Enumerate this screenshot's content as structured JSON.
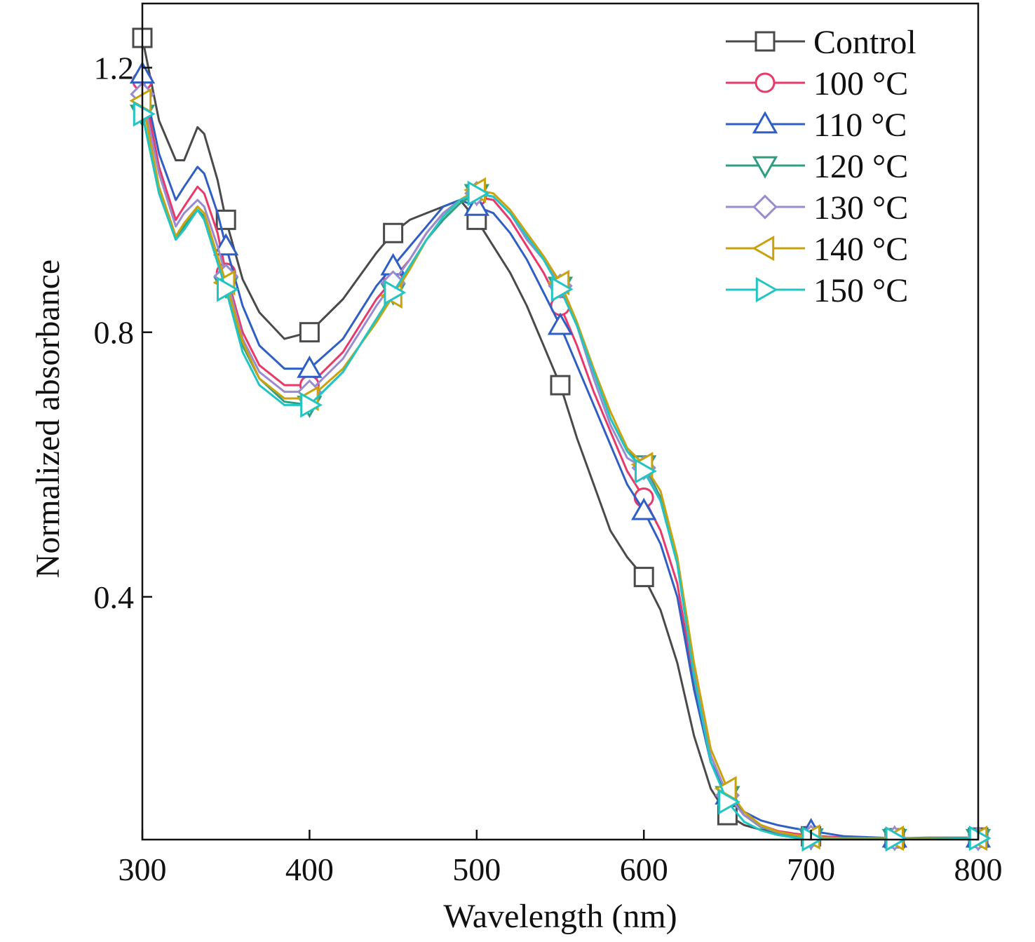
{
  "chart_data": {
    "type": "line",
    "xlabel": "Wavelength (nm)",
    "ylabel": "Normalized absorbance",
    "xlim": [
      300,
      800
    ],
    "ylim": [
      0.033,
      1.297
    ],
    "xticks": [
      300,
      400,
      500,
      600,
      700,
      800
    ],
    "xtick_labels": [
      "300",
      "400",
      "500",
      "600",
      "700",
      "800"
    ],
    "yticks": [
      0.4,
      0.8,
      1.2
    ],
    "ytick_labels": [
      "0.4",
      "0.8",
      "1.2"
    ],
    "grid": false,
    "legend_position": "top-right",
    "series": [
      {
        "name": "Control",
        "color": "#4a4a4a",
        "marker": "square",
        "x": [
          300,
          310,
          320,
          325,
          333,
          337,
          345,
          350,
          360,
          370,
          385,
          400,
          420,
          440,
          450,
          460,
          470,
          480,
          490,
          500,
          510,
          520,
          530,
          540,
          550,
          560,
          570,
          580,
          590,
          600,
          610,
          620,
          630,
          640,
          650,
          660,
          670,
          680,
          690,
          700,
          720,
          750,
          770,
          800
        ],
        "y": [
          1.245,
          1.12,
          1.06,
          1.06,
          1.11,
          1.1,
          1.03,
          0.97,
          0.88,
          0.83,
          0.79,
          0.8,
          0.85,
          0.92,
          0.95,
          0.97,
          0.98,
          0.99,
          1.0,
          0.97,
          0.93,
          0.89,
          0.84,
          0.78,
          0.72,
          0.64,
          0.57,
          0.5,
          0.46,
          0.43,
          0.38,
          0.3,
          0.19,
          0.11,
          0.07,
          0.055,
          0.048,
          0.043,
          0.04,
          0.038,
          0.036,
          0.035,
          0.036,
          0.036
        ]
      },
      {
        "name": "100 °C",
        "color": "#e8396a",
        "marker": "circle",
        "x": [
          300,
          310,
          320,
          325,
          333,
          337,
          345,
          350,
          360,
          370,
          385,
          400,
          420,
          440,
          450,
          460,
          470,
          480,
          490,
          500,
          510,
          520,
          530,
          540,
          550,
          560,
          570,
          580,
          590,
          600,
          610,
          620,
          630,
          640,
          650,
          660,
          670,
          680,
          690,
          700,
          720,
          750,
          770,
          800
        ],
        "y": [
          1.18,
          1.05,
          0.97,
          0.99,
          1.02,
          1.01,
          0.95,
          0.89,
          0.8,
          0.75,
          0.72,
          0.72,
          0.77,
          0.85,
          0.88,
          0.91,
          0.95,
          0.98,
          1.0,
          1.005,
          1.0,
          0.97,
          0.93,
          0.89,
          0.84,
          0.78,
          0.71,
          0.65,
          0.59,
          0.55,
          0.5,
          0.42,
          0.27,
          0.15,
          0.1,
          0.07,
          0.055,
          0.046,
          0.042,
          0.039,
          0.036,
          0.035,
          0.035,
          0.035
        ]
      },
      {
        "name": "110 °C",
        "color": "#2f5fc4",
        "marker": "triangle-up",
        "x": [
          300,
          310,
          320,
          325,
          333,
          337,
          345,
          350,
          360,
          370,
          385,
          400,
          420,
          440,
          450,
          460,
          470,
          480,
          490,
          500,
          510,
          520,
          530,
          540,
          550,
          560,
          570,
          580,
          590,
          600,
          610,
          620,
          630,
          640,
          650,
          660,
          670,
          680,
          690,
          700,
          720,
          750,
          770,
          800
        ],
        "y": [
          1.19,
          1.07,
          1.0,
          1.02,
          1.05,
          1.04,
          0.98,
          0.93,
          0.84,
          0.78,
          0.745,
          0.745,
          0.79,
          0.87,
          0.9,
          0.93,
          0.96,
          0.99,
          1.0,
          0.99,
          0.98,
          0.95,
          0.91,
          0.86,
          0.81,
          0.75,
          0.69,
          0.63,
          0.57,
          0.53,
          0.48,
          0.4,
          0.26,
          0.15,
          0.1,
          0.075,
          0.062,
          0.055,
          0.05,
          0.046,
          0.038,
          0.035,
          0.035,
          0.035
        ]
      },
      {
        "name": "120 °C",
        "color": "#2e9e82",
        "marker": "triangle-down",
        "x": [
          300,
          310,
          320,
          325,
          333,
          337,
          345,
          350,
          360,
          370,
          385,
          400,
          420,
          440,
          450,
          460,
          470,
          480,
          490,
          500,
          510,
          520,
          530,
          540,
          550,
          560,
          570,
          580,
          590,
          600,
          610,
          620,
          630,
          640,
          650,
          660,
          670,
          680,
          690,
          700,
          720,
          750,
          770,
          800
        ],
        "y": [
          1.13,
          1.01,
          0.94,
          0.96,
          0.985,
          0.975,
          0.91,
          0.87,
          0.78,
          0.73,
          0.695,
          0.69,
          0.74,
          0.82,
          0.86,
          0.9,
          0.94,
          0.97,
          0.995,
          1.01,
          1.005,
          0.98,
          0.945,
          0.91,
          0.87,
          0.81,
          0.74,
          0.67,
          0.62,
          0.6,
          0.55,
          0.45,
          0.29,
          0.16,
          0.1,
          0.07,
          0.052,
          0.043,
          0.039,
          0.036,
          0.035,
          0.035,
          0.035,
          0.035
        ]
      },
      {
        "name": "130 °C",
        "color": "#9a8bd0",
        "marker": "diamond",
        "x": [
          300,
          310,
          320,
          325,
          333,
          337,
          345,
          350,
          360,
          370,
          385,
          400,
          420,
          440,
          450,
          460,
          470,
          480,
          490,
          500,
          510,
          520,
          530,
          540,
          550,
          560,
          570,
          580,
          590,
          600,
          610,
          620,
          630,
          640,
          650,
          660,
          670,
          680,
          690,
          700,
          720,
          750,
          770,
          800
        ],
        "y": [
          1.16,
          1.04,
          0.96,
          0.98,
          1.0,
          0.99,
          0.93,
          0.885,
          0.79,
          0.74,
          0.71,
          0.71,
          0.76,
          0.84,
          0.875,
          0.91,
          0.95,
          0.98,
          1.0,
          1.01,
          1.005,
          0.98,
          0.94,
          0.91,
          0.87,
          0.81,
          0.73,
          0.66,
          0.61,
          0.595,
          0.545,
          0.45,
          0.29,
          0.16,
          0.1,
          0.07,
          0.053,
          0.044,
          0.04,
          0.037,
          0.035,
          0.035,
          0.035,
          0.035
        ]
      },
      {
        "name": "140 °C",
        "color": "#c9a20e",
        "marker": "triangle-left",
        "x": [
          300,
          310,
          320,
          325,
          333,
          337,
          345,
          350,
          360,
          370,
          385,
          400,
          420,
          440,
          450,
          460,
          470,
          480,
          490,
          500,
          510,
          520,
          530,
          540,
          550,
          560,
          570,
          580,
          590,
          600,
          610,
          620,
          630,
          640,
          650,
          660,
          670,
          680,
          690,
          700,
          720,
          750,
          770,
          800
        ],
        "y": [
          1.15,
          1.02,
          0.945,
          0.965,
          0.99,
          0.98,
          0.915,
          0.875,
          0.785,
          0.73,
          0.7,
          0.7,
          0.745,
          0.815,
          0.855,
          0.895,
          0.94,
          0.975,
          1.0,
          1.015,
          1.01,
          0.985,
          0.95,
          0.915,
          0.875,
          0.815,
          0.745,
          0.68,
          0.625,
          0.6,
          0.56,
          0.46,
          0.3,
          0.17,
          0.11,
          0.075,
          0.055,
          0.045,
          0.04,
          0.037,
          0.035,
          0.035,
          0.035,
          0.035
        ]
      },
      {
        "name": "150 °C",
        "color": "#22c4c4",
        "marker": "triangle-right",
        "x": [
          300,
          310,
          320,
          325,
          333,
          337,
          345,
          350,
          360,
          370,
          385,
          400,
          420,
          440,
          450,
          460,
          470,
          480,
          490,
          500,
          510,
          520,
          530,
          540,
          550,
          560,
          570,
          580,
          590,
          600,
          610,
          620,
          630,
          640,
          650,
          660,
          670,
          680,
          690,
          700,
          720,
          750,
          770,
          800
        ],
        "y": [
          1.13,
          1.01,
          0.94,
          0.955,
          0.985,
          0.97,
          0.905,
          0.865,
          0.77,
          0.72,
          0.69,
          0.69,
          0.74,
          0.82,
          0.86,
          0.9,
          0.94,
          0.975,
          1.0,
          1.01,
          1.005,
          0.98,
          0.945,
          0.91,
          0.865,
          0.81,
          0.74,
          0.67,
          0.62,
          0.59,
          0.545,
          0.45,
          0.28,
          0.15,
          0.09,
          0.06,
          0.047,
          0.04,
          0.036,
          0.034,
          0.034,
          0.034,
          0.034,
          0.035
        ]
      }
    ]
  }
}
